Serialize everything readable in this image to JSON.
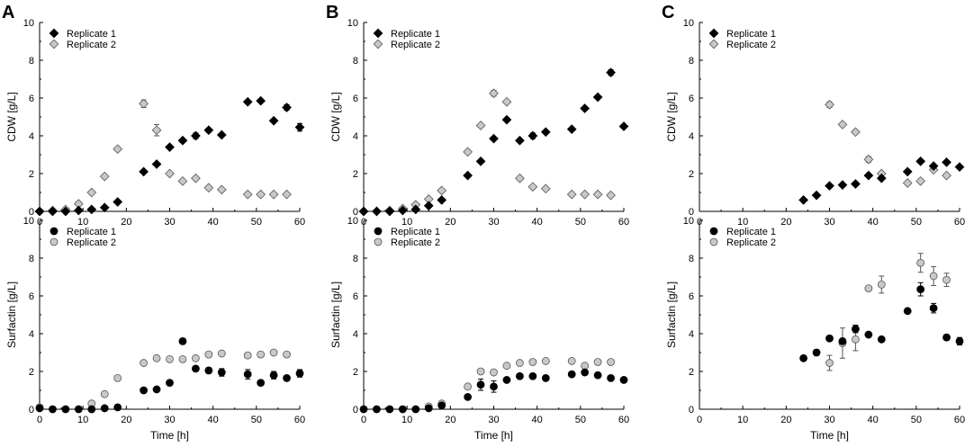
{
  "colors": {
    "replicate1": "#000000",
    "replicate2": "#c8c8c8",
    "stroke2": "#555555",
    "axis": "#000000"
  },
  "chart_data": [
    {
      "panel": "A",
      "position": "top",
      "type": "scatter",
      "ylabel": "CDW [g/L]",
      "xlabel": "",
      "xlim": [
        0,
        60
      ],
      "ylim": [
        0,
        10
      ],
      "xticks": [
        0,
        10,
        20,
        30,
        40,
        50,
        60
      ],
      "yticks": [
        0,
        2,
        4,
        6,
        8,
        10
      ],
      "legend": "top-left",
      "marker": "diamond",
      "series": [
        {
          "name": "Replicate 1",
          "x": [
            0,
            3,
            6,
            9,
            12,
            15,
            18,
            24,
            27,
            30,
            33,
            36,
            39,
            42,
            48,
            51,
            54,
            57,
            60
          ],
          "y": [
            0.0,
            0.0,
            0.0,
            0.05,
            0.1,
            0.2,
            0.5,
            2.1,
            2.5,
            3.4,
            3.75,
            4.0,
            4.3,
            4.05,
            5.8,
            5.85,
            4.8,
            5.5,
            4.45
          ],
          "err": [
            0,
            0,
            0,
            0,
            0,
            0,
            0,
            0,
            0,
            0,
            0.1,
            0.15,
            0.1,
            0,
            0,
            0,
            0,
            0.15,
            0.2
          ]
        },
        {
          "name": "Replicate 2",
          "x": [
            0,
            3,
            6,
            9,
            12,
            15,
            18,
            24,
            27,
            30,
            33,
            36,
            39,
            42,
            48,
            51,
            54,
            57
          ],
          "y": [
            0.0,
            0.05,
            0.1,
            0.4,
            1.0,
            1.85,
            3.3,
            5.7,
            4.3,
            2.0,
            1.6,
            1.75,
            1.25,
            1.15,
            0.9,
            0.9,
            0.9,
            0.9
          ],
          "err": [
            0,
            0,
            0,
            0,
            0,
            0,
            0,
            0.2,
            0.3,
            0,
            0,
            0,
            0,
            0,
            0,
            0,
            0,
            0
          ]
        }
      ]
    },
    {
      "panel": "A",
      "position": "bottom",
      "type": "scatter",
      "ylabel": "Surfactin [g/L]",
      "xlabel": "Time [h]",
      "xlim": [
        0,
        60
      ],
      "ylim": [
        0,
        10
      ],
      "xticks": [
        0,
        10,
        20,
        30,
        40,
        50,
        60
      ],
      "yticks": [
        0,
        2,
        4,
        6,
        8,
        10
      ],
      "legend": "top-left",
      "marker": "circle",
      "series": [
        {
          "name": "Replicate 1",
          "x": [
            0,
            3,
            6,
            9,
            12,
            15,
            18,
            24,
            27,
            30,
            33,
            36,
            39,
            42,
            48,
            51,
            54,
            57,
            60
          ],
          "y": [
            0.05,
            0.0,
            0.0,
            0.0,
            0.0,
            0.05,
            0.1,
            1.0,
            1.05,
            1.4,
            3.6,
            2.15,
            2.05,
            1.95,
            1.85,
            1.4,
            1.8,
            1.65,
            1.9
          ],
          "err": [
            0,
            0,
            0,
            0,
            0,
            0,
            0,
            0,
            0,
            0,
            0.15,
            0,
            0.15,
            0.2,
            0.25,
            0,
            0.2,
            0,
            0.2
          ]
        },
        {
          "name": "Replicate 2",
          "x": [
            0,
            12,
            15,
            18,
            24,
            27,
            30,
            33,
            36,
            39,
            42,
            48,
            51,
            54,
            57
          ],
          "y": [
            0.1,
            0.3,
            0.8,
            1.65,
            2.45,
            2.7,
            2.65,
            2.65,
            2.7,
            2.9,
            2.95,
            2.85,
            2.9,
            3.0,
            2.9
          ],
          "err": [
            0,
            0,
            0,
            0,
            0,
            0.1,
            0,
            0,
            0,
            0,
            0,
            0,
            0,
            0,
            0
          ]
        }
      ]
    },
    {
      "panel": "B",
      "position": "top",
      "type": "scatter",
      "ylabel": "CDW [g/L]",
      "xlabel": "",
      "xlim": [
        0,
        60
      ],
      "ylim": [
        0,
        10
      ],
      "xticks": [
        0,
        10,
        20,
        30,
        40,
        50,
        60
      ],
      "yticks": [
        0,
        2,
        4,
        6,
        8,
        10
      ],
      "legend": "top-left",
      "marker": "diamond",
      "series": [
        {
          "name": "Replicate 1",
          "x": [
            0,
            3,
            6,
            9,
            12,
            15,
            18,
            24,
            27,
            30,
            33,
            36,
            39,
            42,
            48,
            51,
            54,
            57,
            60
          ],
          "y": [
            0.0,
            0.0,
            0.0,
            0.05,
            0.1,
            0.3,
            0.6,
            1.9,
            2.65,
            3.85,
            4.85,
            3.75,
            4.0,
            4.2,
            4.35,
            5.45,
            6.05,
            7.35,
            4.5
          ],
          "err": [
            0,
            0,
            0,
            0,
            0,
            0,
            0,
            0,
            0,
            0,
            0,
            0,
            0.15,
            0,
            0,
            0,
            0,
            0.15,
            0
          ]
        },
        {
          "name": "Replicate 2",
          "x": [
            0,
            3,
            6,
            9,
            12,
            15,
            18,
            24,
            27,
            30,
            33,
            36,
            39,
            42,
            48,
            51,
            54,
            57
          ],
          "y": [
            0.0,
            0.0,
            0.05,
            0.15,
            0.35,
            0.65,
            1.1,
            3.15,
            4.55,
            6.25,
            5.8,
            1.75,
            1.3,
            1.2,
            0.9,
            0.9,
            0.9,
            0.85
          ],
          "err": [
            0,
            0,
            0,
            0,
            0,
            0,
            0,
            0,
            0,
            0.15,
            0,
            0,
            0,
            0,
            0,
            0,
            0,
            0
          ]
        }
      ]
    },
    {
      "panel": "B",
      "position": "bottom",
      "type": "scatter",
      "ylabel": "Surfactin [g/L]",
      "xlabel": "Time [h]",
      "xlim": [
        0,
        60
      ],
      "ylim": [
        0,
        10
      ],
      "xticks": [
        0,
        10,
        20,
        30,
        40,
        50,
        60
      ],
      "yticks": [
        0,
        2,
        4,
        6,
        8,
        10
      ],
      "legend": "top-left",
      "marker": "circle",
      "series": [
        {
          "name": "Replicate 1",
          "x": [
            0,
            3,
            6,
            9,
            12,
            15,
            18,
            24,
            27,
            30,
            33,
            36,
            39,
            42,
            48,
            51,
            54,
            57,
            60
          ],
          "y": [
            0.0,
            0.0,
            0.0,
            0.0,
            0.0,
            0.05,
            0.2,
            0.65,
            1.3,
            1.2,
            1.55,
            1.75,
            1.75,
            1.65,
            1.85,
            1.95,
            1.8,
            1.65,
            1.55
          ],
          "err": [
            0,
            0,
            0,
            0,
            0,
            0,
            0,
            0,
            0.3,
            0.3,
            0,
            0,
            0,
            0,
            0,
            0,
            0,
            0,
            0
          ]
        },
        {
          "name": "Replicate 2",
          "x": [
            15,
            18,
            24,
            27,
            30,
            33,
            36,
            39,
            42,
            48,
            51,
            54,
            57
          ],
          "y": [
            0.15,
            0.3,
            1.2,
            2.0,
            1.95,
            2.3,
            2.45,
            2.5,
            2.55,
            2.55,
            2.3,
            2.5,
            2.5
          ],
          "err": [
            0,
            0,
            0,
            0,
            0,
            0,
            0,
            0,
            0,
            0,
            0,
            0,
            0
          ]
        }
      ]
    },
    {
      "panel": "C",
      "position": "top",
      "type": "scatter",
      "ylabel": "CDW [g/L]",
      "xlabel": "",
      "xlim": [
        0,
        60
      ],
      "ylim": [
        0,
        10
      ],
      "xticks": [
        0,
        10,
        20,
        30,
        40,
        50,
        60
      ],
      "yticks": [
        0,
        2,
        4,
        6,
        8,
        10
      ],
      "legend": "top-left",
      "marker": "diamond",
      "series": [
        {
          "name": "Replicate 1",
          "x": [
            24,
            27,
            30,
            33,
            36,
            39,
            42,
            48,
            51,
            54,
            57,
            60
          ],
          "y": [
            0.6,
            0.85,
            1.35,
            1.4,
            1.45,
            1.9,
            1.75,
            2.1,
            2.65,
            2.4,
            2.6,
            2.35
          ],
          "err": [
            0,
            0,
            0,
            0,
            0,
            0,
            0,
            0,
            0,
            0,
            0,
            0
          ]
        },
        {
          "name": "Replicate 2",
          "x": [
            30,
            33,
            36,
            39,
            42,
            48,
            51,
            54,
            57
          ],
          "y": [
            5.65,
            4.6,
            4.2,
            2.75,
            2.0,
            1.5,
            1.6,
            2.2,
            1.9
          ],
          "err": [
            0.15,
            0,
            0,
            0.15,
            0,
            0,
            0,
            0,
            0
          ]
        }
      ]
    },
    {
      "panel": "C",
      "position": "bottom",
      "type": "scatter",
      "ylabel": "Surfactin [g/L]",
      "xlabel": "Time [h]",
      "xlim": [
        0,
        60
      ],
      "ylim": [
        0,
        10
      ],
      "xticks": [
        0,
        10,
        20,
        30,
        40,
        50,
        60
      ],
      "yticks": [
        0,
        2,
        4,
        6,
        8,
        10
      ],
      "legend": "top-left",
      "marker": "circle",
      "series": [
        {
          "name": "Replicate 1",
          "x": [
            24,
            27,
            30,
            33,
            36,
            39,
            42,
            48,
            51,
            54,
            57,
            60
          ],
          "y": [
            2.7,
            3.0,
            3.75,
            3.6,
            4.25,
            3.95,
            3.7,
            5.2,
            6.35,
            5.35,
            3.8,
            3.6
          ],
          "err": [
            0,
            0.15,
            0,
            0.15,
            0.2,
            0,
            0,
            0,
            0.35,
            0.25,
            0.15,
            0.2
          ]
        },
        {
          "name": "Replicate 2",
          "x": [
            30,
            33,
            36,
            39,
            42,
            51,
            54,
            57
          ],
          "y": [
            2.45,
            3.5,
            3.7,
            6.4,
            6.6,
            7.75,
            7.05,
            6.85
          ],
          "err": [
            0.4,
            0.8,
            0.6,
            0,
            0.45,
            0.5,
            0.5,
            0.35
          ]
        }
      ]
    }
  ]
}
